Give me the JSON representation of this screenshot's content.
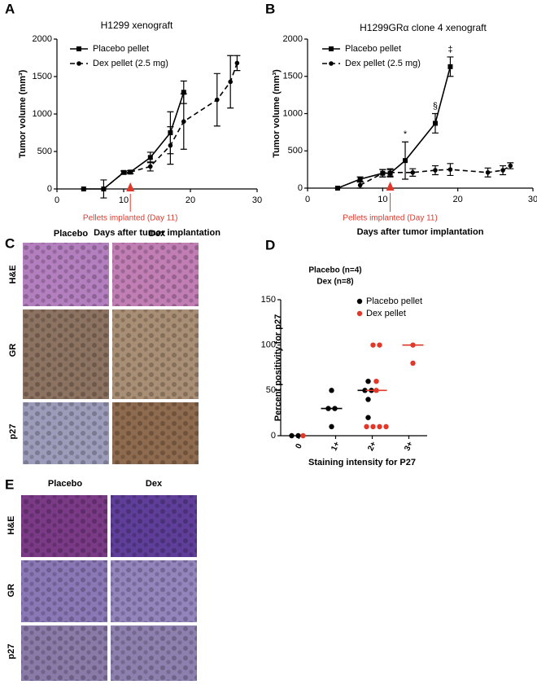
{
  "panel_labels": [
    "A",
    "B",
    "C",
    "D",
    "E"
  ],
  "chart_data": [
    {
      "type": "line",
      "title": "H1299 xenograft",
      "y_label": "Tumor volume (mm³)",
      "x_label": "Days after tumor implantation",
      "annotation": "Pellets implanted (Day 11)",
      "annotation_x": 11,
      "xlim": [
        0,
        30
      ],
      "xticks": [
        0,
        10,
        20,
        30
      ],
      "ylim": [
        0,
        2000
      ],
      "yticks": [
        0,
        500,
        1000,
        1500,
        2000
      ],
      "series": [
        {
          "name": "Placebo pellet",
          "color": "#000000",
          "line_style": "solid",
          "marker": "square",
          "x": [
            4,
            7,
            10,
            11,
            14,
            17,
            19
          ],
          "values": [
            0,
            0,
            220,
            225,
            420,
            750,
            1290
          ],
          "errors": [
            0,
            0,
            20,
            20,
            70,
            280,
            150
          ]
        },
        {
          "name": "Dex pellet (2.5 mg)",
          "color": "#000000",
          "line_style": "dashed",
          "marker": "circle",
          "x": [
            7,
            10,
            11,
            14,
            17,
            19,
            24,
            26,
            27
          ],
          "values": [
            0,
            220,
            225,
            300,
            580,
            900,
            1190,
            1430,
            1680
          ],
          "errors": [
            120,
            20,
            20,
            60,
            250,
            370,
            350,
            350,
            100
          ]
        }
      ]
    },
    {
      "type": "line",
      "title": "H1299GRα  clone 4 xenograft",
      "y_label": "Tumor volume (mm³)",
      "x_label": "Days after tumor implantation",
      "annotation": "Pellets implanted (Day 11)",
      "annotation_x": 11,
      "xlim": [
        0,
        30
      ],
      "xticks": [
        0,
        10,
        20,
        30
      ],
      "ylim": [
        0,
        2000
      ],
      "yticks": [
        0,
        500,
        1000,
        1500,
        2000
      ],
      "series": [
        {
          "name": "Placebo pellet",
          "color": "#000000",
          "line_style": "solid",
          "marker": "square",
          "x": [
            4,
            7,
            10,
            11,
            13,
            17,
            19
          ],
          "values": [
            0,
            120,
            200,
            200,
            370,
            870,
            1630
          ],
          "errors": [
            0,
            30,
            50,
            50,
            250,
            130,
            130
          ],
          "value_annotations": [
            null,
            null,
            null,
            null,
            "*",
            "§",
            "‡"
          ]
        },
        {
          "name": "Dex pellet (2.5 mg)",
          "color": "#000000",
          "line_style": "dashed",
          "marker": "circle",
          "x": [
            7,
            10,
            11,
            14,
            17,
            19,
            24,
            26,
            27
          ],
          "values": [
            40,
            200,
            210,
            210,
            240,
            250,
            210,
            240,
            300
          ],
          "errors": [
            40,
            50,
            50,
            50,
            60,
            80,
            60,
            60,
            40
          ]
        }
      ]
    },
    {
      "type": "strip",
      "title": "Placebo (n=4)",
      "subtitle": "Dex (n=8)",
      "y_label": "Percent positivity for p27",
      "x_label": "Staining intensity for P27",
      "categories": [
        "0",
        "1+",
        "2+",
        "3+"
      ],
      "ylim": [
        0,
        150
      ],
      "yticks": [
        0,
        50,
        100,
        150
      ],
      "series": [
        {
          "name": "Placebo pellet",
          "color": "#000000",
          "x": [
            "0",
            "0",
            "1+",
            "1+",
            "1+",
            "1+",
            "2+",
            "2+",
            "2+",
            "2+",
            "2+"
          ],
          "values": [
            0,
            0,
            50,
            30,
            30,
            10,
            60,
            50,
            50,
            40,
            20
          ],
          "medians": [
            null,
            30,
            50,
            null
          ]
        },
        {
          "name": "Dex pellet",
          "color": "#e0392b",
          "x": [
            "0",
            "2+",
            "2+",
            "2+",
            "2+",
            "2+",
            "2+",
            "2+",
            "2+",
            "3+",
            "3+"
          ],
          "values": [
            0,
            100,
            100,
            60,
            50,
            10,
            10,
            10,
            10,
            100,
            80
          ],
          "medians": [
            null,
            null,
            50,
            100
          ]
        }
      ]
    }
  ],
  "micrographs": [
    {
      "columns": [
        "Placebo",
        "Dex"
      ],
      "rows": [
        "H&E",
        "GR",
        "p27"
      ]
    },
    {
      "columns": [
        "Placebo",
        "Dex"
      ],
      "rows": [
        "H&E",
        "GR",
        "p27"
      ]
    }
  ]
}
